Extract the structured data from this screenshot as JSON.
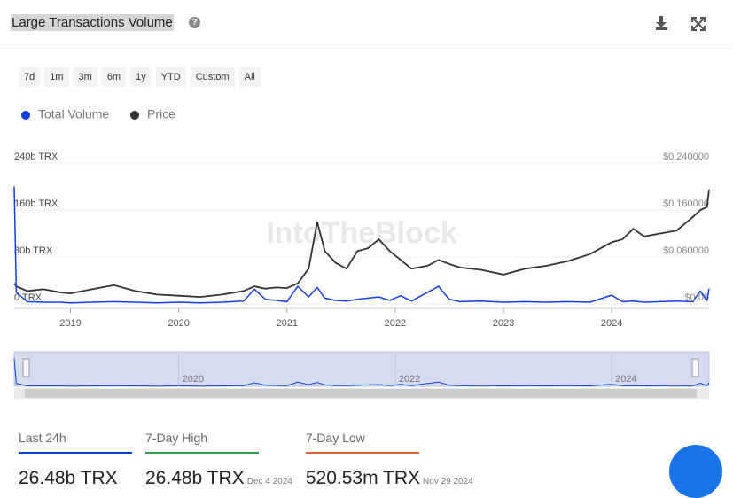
{
  "header": {
    "title": "Large Transactions Volume"
  },
  "range_buttons": [
    "7d",
    "1m",
    "3m",
    "6m",
    "1y",
    "YTD",
    "Custom",
    "All"
  ],
  "chart_data": {
    "type": "line",
    "watermark": "IntoTheBlock",
    "x": [
      2018.48,
      2018.5,
      2018.6,
      2018.75,
      2018.9,
      2019.0,
      2019.2,
      2019.4,
      2019.6,
      2019.8,
      2020.0,
      2020.2,
      2020.4,
      2020.6,
      2020.7,
      2020.8,
      2020.9,
      2021.0,
      2021.1,
      2021.2,
      2021.28,
      2021.35,
      2021.45,
      2021.55,
      2021.65,
      2021.75,
      2021.85,
      2021.95,
      2022.05,
      2022.15,
      2022.3,
      2022.4,
      2022.5,
      2022.6,
      2022.8,
      2023.0,
      2023.2,
      2023.4,
      2023.6,
      2023.8,
      2024.0,
      2024.1,
      2024.2,
      2024.3,
      2024.45,
      2024.6,
      2024.75,
      2024.82,
      2024.88,
      2024.9
    ],
    "series": [
      {
        "name": "Total Volume",
        "color": "#1040e0",
        "axis": "y",
        "values": [
          200,
          20,
          4,
          3,
          3,
          2,
          3,
          4,
          3,
          2,
          3,
          2,
          3,
          5,
          25,
          8,
          6,
          4,
          30,
          12,
          28,
          10,
          6,
          5,
          8,
          10,
          12,
          6,
          14,
          5,
          20,
          30,
          8,
          4,
          5,
          3,
          4,
          3,
          4,
          3,
          15,
          4,
          5,
          3,
          4,
          5,
          4,
          22,
          6,
          26
        ]
      },
      {
        "name": "Price",
        "color": "#333333",
        "axis": "y2",
        "values": [
          0.035,
          0.03,
          0.022,
          0.025,
          0.02,
          0.018,
          0.025,
          0.032,
          0.022,
          0.016,
          0.014,
          0.012,
          0.016,
          0.022,
          0.03,
          0.026,
          0.028,
          0.027,
          0.035,
          0.06,
          0.14,
          0.09,
          0.07,
          0.06,
          0.09,
          0.095,
          0.11,
          0.09,
          0.075,
          0.06,
          0.065,
          0.075,
          0.068,
          0.062,
          0.058,
          0.05,
          0.06,
          0.065,
          0.073,
          0.085,
          0.105,
          0.11,
          0.128,
          0.115,
          0.12,
          0.125,
          0.148,
          0.16,
          0.165,
          0.195
        ]
      }
    ],
    "xlim": [
      2018.48,
      2024.9
    ],
    "xticks": [
      2019,
      2020,
      2021,
      2022,
      2023,
      2024
    ],
    "ylim": [
      0,
      240
    ],
    "yticks": [
      {
        "value": 0,
        "label": "0 TRX"
      },
      {
        "value": 80,
        "label": "80b TRX"
      },
      {
        "value": 160,
        "label": "160b TRX"
      },
      {
        "value": 240,
        "label": "240b TRX"
      }
    ],
    "y2lim": [
      0,
      0.24
    ],
    "y2ticks": [
      {
        "value": 0,
        "label": "$0.00"
      },
      {
        "value": 0.08,
        "label": "$0.080000"
      },
      {
        "value": 0.16,
        "label": "$0.160000"
      },
      {
        "value": 0.24,
        "label": "$0.240000"
      }
    ],
    "grid": true,
    "navigator_ticks": [
      2020,
      2022,
      2024
    ]
  },
  "stats": [
    {
      "label": "Last 24h",
      "value": "26.48b TRX",
      "color": "#1040e0"
    },
    {
      "label": "7-Day High",
      "value": "26.48b TRX",
      "date": "Dec 4 2024",
      "color": "#2e9e4a"
    },
    {
      "label": "7-Day Low",
      "value": "520.53m TRX",
      "date": "Nov 29 2024",
      "color": "#e0603a"
    }
  ]
}
